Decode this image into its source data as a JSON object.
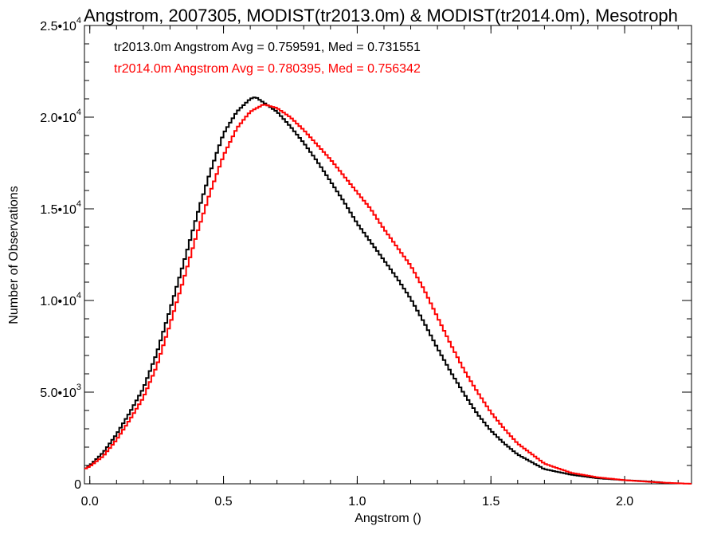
{
  "chart_data": {
    "type": "line",
    "title": "Angstrom, 2007305, MODIST(tr2013.0m) & MODIST(tr2014.0m), Mesotroph",
    "xlabel": "Angstrom ()",
    "ylabel": "Number of Observations",
    "xlim": [
      -0.02,
      2.25
    ],
    "ylim": [
      0,
      25000
    ],
    "x_ticks": [
      {
        "value": 0.0,
        "label": "0.0"
      },
      {
        "value": 0.5,
        "label": "0.5"
      },
      {
        "value": 1.0,
        "label": "1.0"
      },
      {
        "value": 1.5,
        "label": "1.5"
      },
      {
        "value": 2.0,
        "label": "2.0"
      }
    ],
    "y_ticks": [
      {
        "value": 0,
        "mant": "0",
        "exp": ""
      },
      {
        "value": 5000,
        "mant": "5.0•10",
        "exp": "3"
      },
      {
        "value": 10000,
        "mant": "1.0•10",
        "exp": "4"
      },
      {
        "value": 15000,
        "mant": "1.5•10",
        "exp": "4"
      },
      {
        "value": 20000,
        "mant": "2.0•10",
        "exp": "4"
      },
      {
        "value": 25000,
        "mant": "2.5•10",
        "exp": "4"
      }
    ],
    "grid": false,
    "legend_position": "top-left",
    "series": [
      {
        "legend": "tr2013.0m Angstrom Avg = 0.759591, Med = 0.731551",
        "color": "#000000",
        "x": [
          -0.02,
          0.0,
          0.05,
          0.1,
          0.15,
          0.2,
          0.25,
          0.3,
          0.35,
          0.4,
          0.45,
          0.5,
          0.55,
          0.6,
          0.62,
          0.65,
          0.7,
          0.75,
          0.8,
          0.85,
          0.9,
          0.95,
          1.0,
          1.05,
          1.1,
          1.15,
          1.2,
          1.25,
          1.3,
          1.35,
          1.4,
          1.45,
          1.5,
          1.55,
          1.6,
          1.7,
          1.8,
          1.9,
          2.0,
          2.1,
          2.15
        ],
        "y": [
          800,
          1000,
          1700,
          2700,
          3900,
          5200,
          7100,
          9500,
          12000,
          14600,
          17000,
          19100,
          20300,
          21000,
          21100,
          20800,
          20300,
          19500,
          18600,
          17600,
          16500,
          15400,
          14200,
          13200,
          12200,
          11200,
          10100,
          8800,
          7400,
          6100,
          4900,
          3800,
          2900,
          2200,
          1600,
          800,
          500,
          300,
          200,
          120,
          60
        ]
      },
      {
        "legend": "tr2014.0m Angstrom Avg = 0.780395, Med = 0.756342",
        "color": "#ff0000",
        "x": [
          -0.02,
          0.0,
          0.05,
          0.1,
          0.15,
          0.2,
          0.25,
          0.3,
          0.35,
          0.4,
          0.45,
          0.5,
          0.55,
          0.6,
          0.65,
          0.7,
          0.75,
          0.8,
          0.85,
          0.9,
          0.95,
          1.0,
          1.05,
          1.1,
          1.15,
          1.2,
          1.25,
          1.3,
          1.35,
          1.4,
          1.45,
          1.5,
          1.55,
          1.6,
          1.7,
          1.8,
          1.9,
          2.0,
          2.1,
          2.15,
          2.25
        ],
        "y": [
          800,
          950,
          1500,
          2400,
          3500,
          4700,
          6400,
          8700,
          11100,
          13600,
          15900,
          17900,
          19400,
          20300,
          20700,
          20500,
          20000,
          19300,
          18500,
          17700,
          16800,
          15900,
          15000,
          13900,
          12900,
          11900,
          10600,
          9100,
          7600,
          6200,
          5000,
          3900,
          3000,
          2200,
          1100,
          600,
          350,
          200,
          100,
          60,
          0
        ]
      }
    ]
  }
}
